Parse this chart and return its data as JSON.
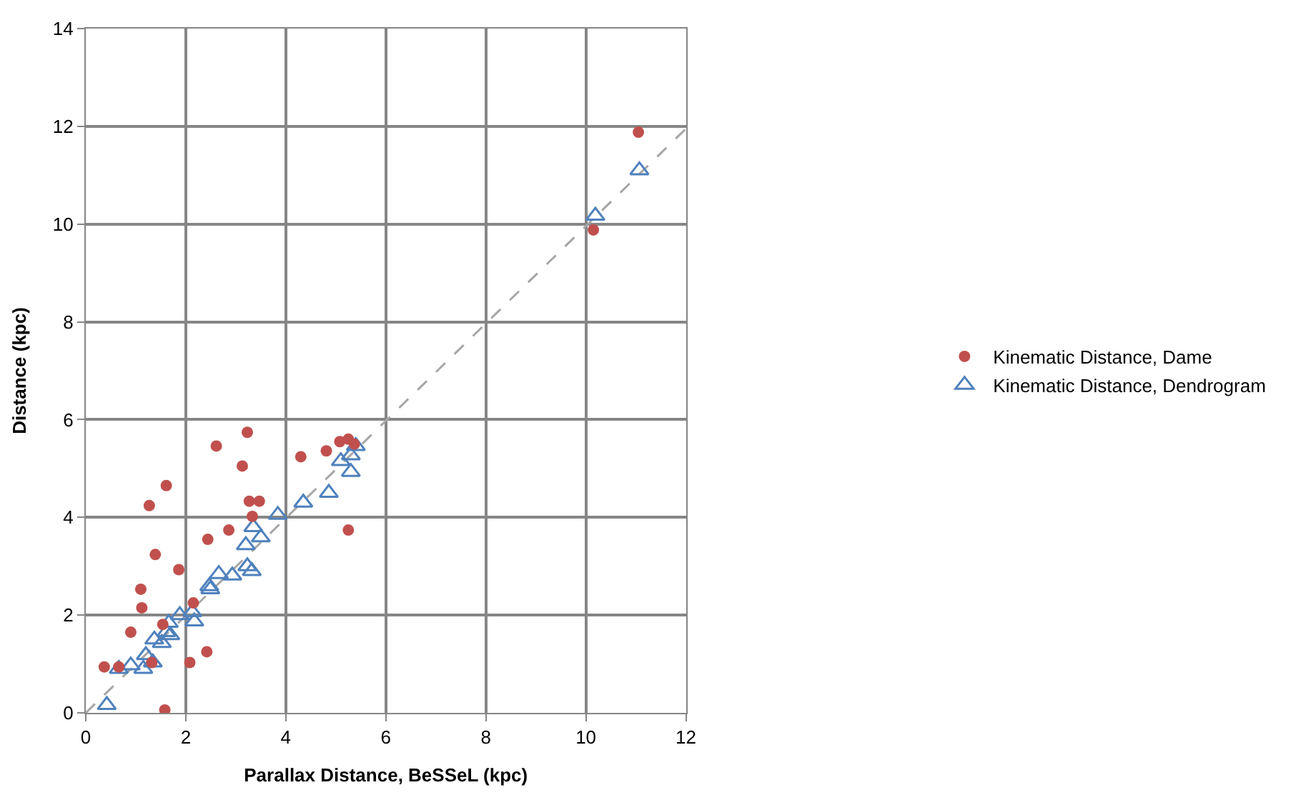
{
  "chart_data": {
    "type": "scatter",
    "xlabel": "Parallax Distance, BeSSeL (kpc)",
    "ylabel": "Distance (kpc)",
    "xlim": [
      0,
      12
    ],
    "ylim": [
      0,
      14
    ],
    "xticks": [
      0,
      2,
      4,
      6,
      8,
      10,
      12
    ],
    "yticks": [
      0,
      2,
      4,
      6,
      8,
      10,
      12,
      14
    ],
    "grid": true,
    "legend": "right",
    "series": [
      {
        "name": "Kinematic Distance, Dame",
        "color": "#c0504d",
        "marker": "circle",
        "x": [
          0.37,
          0.66,
          0.9,
          1.1,
          1.12,
          1.27,
          1.39,
          1.61,
          1.54,
          1.86,
          1.58,
          2.08,
          2.15,
          2.42,
          2.44,
          2.61,
          2.86,
          3.13,
          3.23,
          3.27,
          3.47,
          3.33,
          4.3,
          4.81,
          5.08,
          5.25,
          5.37,
          5.25,
          1.32,
          10.15,
          11.05
        ],
        "values": [
          0.94,
          0.94,
          1.65,
          2.53,
          2.15,
          4.24,
          3.24,
          4.65,
          1.81,
          2.93,
          0.06,
          1.03,
          2.25,
          1.25,
          3.55,
          5.46,
          3.74,
          5.05,
          5.74,
          4.33,
          4.33,
          4.02,
          5.24,
          5.36,
          5.55,
          5.6,
          5.5,
          3.74,
          1.03,
          9.88,
          11.88
        ]
      },
      {
        "name": "Kinematic Distance, Dendrogram",
        "color": "#4f81bd",
        "marker": "triangle",
        "x": [
          0.42,
          0.66,
          0.9,
          1.15,
          1.2,
          1.37,
          1.34,
          1.52,
          1.61,
          1.66,
          1.69,
          1.88,
          2.13,
          2.17,
          2.47,
          2.49,
          2.66,
          2.93,
          3.2,
          3.23,
          3.32,
          3.35,
          3.5,
          3.84,
          4.35,
          4.86,
          5.1,
          5.3,
          5.3,
          5.4,
          10.19,
          11.07
        ],
        "values": [
          0.16,
          0.9,
          0.97,
          0.9,
          1.18,
          1.5,
          1.03,
          1.43,
          1.65,
          1.84,
          1.59,
          2.0,
          2.06,
          1.87,
          2.59,
          2.53,
          2.84,
          2.81,
          3.43,
          3.0,
          2.9,
          3.8,
          3.59,
          4.05,
          4.3,
          4.5,
          5.15,
          5.27,
          4.93,
          5.46,
          10.17,
          11.1
        ]
      },
      {
        "type": "line",
        "color": "#a6a6a6",
        "marker": "none",
        "line_style": "dashed",
        "x": [
          0,
          12
        ],
        "values": [
          0,
          11.95
        ]
      }
    ]
  }
}
